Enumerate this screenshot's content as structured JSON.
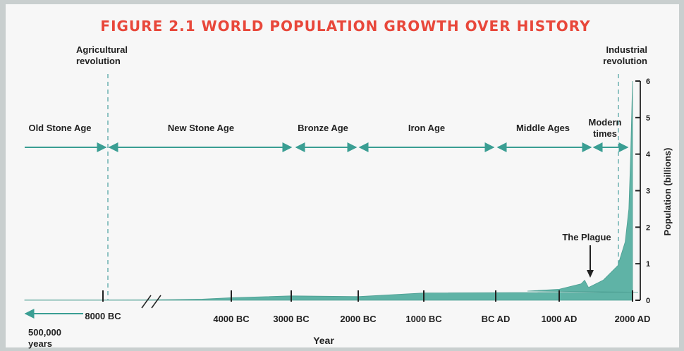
{
  "chart_data": {
    "type": "area",
    "title": "FIGURE 2.1 WORLD POPULATION GROWTH OVER HISTORY",
    "xlabel": "Year",
    "ylabel": "Population (billions)",
    "ylim": [
      0,
      6
    ],
    "y_ticks": [
      "0",
      "1",
      "2",
      "3",
      "4",
      "5",
      "6"
    ],
    "x_tick_labels": [
      "8000 BC",
      "4000 BC",
      "3000 BC",
      "2000 BC",
      "1000 BC",
      "BC AD",
      "1000 AD",
      "2000 AD"
    ],
    "x_axis_note": "500,000\nyears",
    "series": [
      {
        "x": [
          "500,000 years",
          "8000 BC",
          "7000 BC",
          "6000 BC",
          "5000 BC",
          "4000 BC",
          "3000 BC",
          "2000 BC",
          "1000 BC",
          "BC AD",
          "500 AD",
          "1000 AD",
          "1300 AD",
          "1347 AD",
          "1400 AD",
          "1600 AD",
          "1800 AD",
          "1900 AD",
          "1950 AD",
          "1975 AD",
          "2000 AD"
        ],
        "y": [
          0.005,
          0.005,
          0.01,
          0.02,
          0.03,
          0.07,
          0.12,
          0.1,
          0.2,
          0.22,
          0.25,
          0.3,
          0.45,
          0.55,
          0.35,
          0.55,
          0.95,
          1.6,
          2.5,
          4.0,
          6.0
        ]
      }
    ],
    "period_labels": [
      "Old Stone Age",
      "New Stone Age",
      "Bronze Age",
      "Iron Age",
      "Middle Ages",
      "Modern\ntimes"
    ],
    "annotations": [
      "Agricultural\nrevolution",
      "Industrial\nrevolution",
      "The Plague"
    ],
    "colors": {
      "fill": "#5fb3a6",
      "arrows": "#3a9e93",
      "title": "#e8473a",
      "dashed": "#4a9fa0"
    }
  }
}
